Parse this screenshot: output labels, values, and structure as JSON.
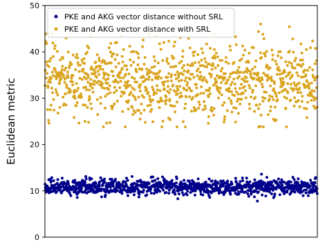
{
  "chart_data": {
    "type": "scatter",
    "title": "",
    "xlabel": "",
    "ylabel": "Euclidean metric",
    "xlim": [
      0,
      1000
    ],
    "ylim": [
      0,
      50
    ],
    "y_ticks": [
      0,
      10,
      20,
      30,
      40,
      50
    ],
    "x_ticks": [],
    "grid": false,
    "legend_position": "top-left",
    "series": [
      {
        "name": "PKE and AKG vector distance without SRL",
        "color": "#00008b",
        "n_points": 1000,
        "summary": {
          "mean": 10.8,
          "std": 0.85,
          "min": 7.6,
          "max": 13.6
        },
        "highlights": [
          {
            "x": 22,
            "y": 12.2
          },
          {
            "x": 150,
            "y": 13.1
          },
          {
            "x": 320,
            "y": 13.1
          },
          {
            "x": 390,
            "y": 12.9
          },
          {
            "x": 488,
            "y": 8.3
          },
          {
            "x": 605,
            "y": 8.6
          },
          {
            "x": 700,
            "y": 12.7
          },
          {
            "x": 780,
            "y": 7.8
          },
          {
            "x": 795,
            "y": 13.6
          },
          {
            "x": 930,
            "y": 12.6
          },
          {
            "x": 975,
            "y": 12.3
          }
        ]
      },
      {
        "name": "PKE and AKG vector distance with SRL",
        "color": "#daa520",
        "n_points": 1000,
        "summary": {
          "mean": 33.7,
          "std": 4.0,
          "min": 23.5,
          "max": 46.0
        },
        "highlights": [
          {
            "x": 15,
            "y": 24.6
          },
          {
            "x": 160,
            "y": 24.8
          },
          {
            "x": 168,
            "y": 43.3
          },
          {
            "x": 295,
            "y": 23.8
          },
          {
            "x": 382,
            "y": 43.9
          },
          {
            "x": 455,
            "y": 42.3
          },
          {
            "x": 485,
            "y": 23.8
          },
          {
            "x": 600,
            "y": 24.6
          },
          {
            "x": 620,
            "y": 43.8
          },
          {
            "x": 792,
            "y": 46.0
          },
          {
            "x": 800,
            "y": 43.8
          },
          {
            "x": 785,
            "y": 23.8
          },
          {
            "x": 960,
            "y": 40.5
          }
        ]
      }
    ]
  }
}
